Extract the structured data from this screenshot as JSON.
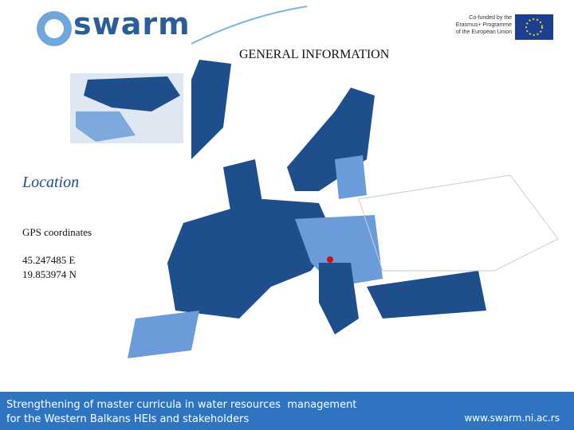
{
  "header": {
    "logo": "swarm",
    "eu_text": [
      "Co-funded by the",
      "Erasmus+ Programme",
      "of the European Union"
    ]
  },
  "title": "GENERAL INFORMATION",
  "location": {
    "heading": "Location",
    "label": "GPS coordinates",
    "coordinates": [
      "45.247485 E",
      "19.853974 N"
    ]
  },
  "footer": {
    "project": [
      "Strengthening of master curricula in water resources  management",
      "for the Western Balkans HEIs and stakeholders"
    ],
    "url": "www.swarm.ni.ac.rs"
  }
}
